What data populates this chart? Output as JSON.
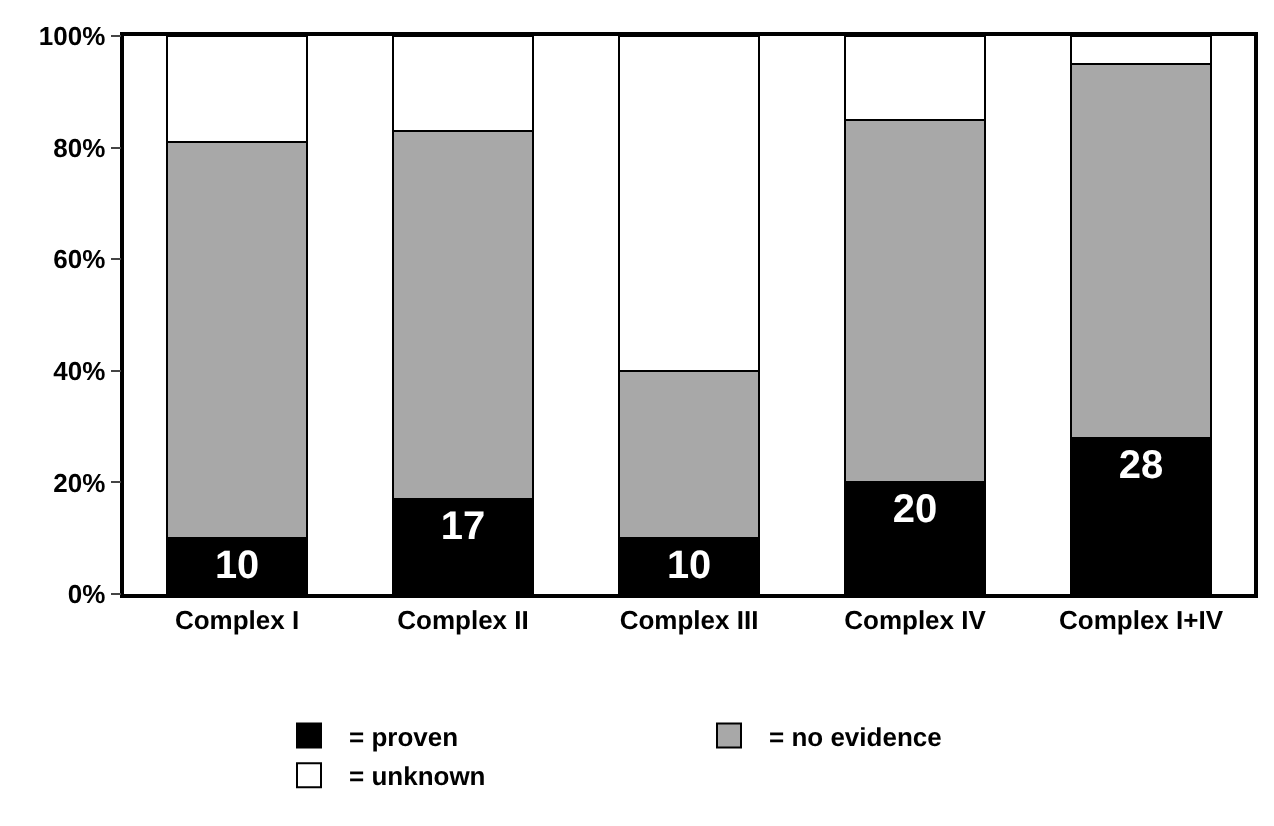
{
  "chart_data": {
    "type": "bar",
    "stacked": true,
    "categories": [
      "Complex I",
      "Complex II",
      "Complex III",
      "Complex IV",
      "Complex I+IV"
    ],
    "series": [
      {
        "name": "= proven",
        "color": "#000000",
        "values": [
          10,
          17,
          10,
          20,
          28
        ],
        "value_labels": [
          "10",
          "17",
          "10",
          "20",
          "28"
        ]
      },
      {
        "name": "= no evidence",
        "color": "#a8a8a8",
        "values": [
          71,
          66,
          30,
          65,
          67
        ]
      },
      {
        "name": "= unknown",
        "color": "#ffffff",
        "values": [
          19,
          17,
          60,
          15,
          5
        ]
      }
    ],
    "ylim": [
      0,
      100
    ],
    "yticks": [
      {
        "value": 0,
        "label": "0%"
      },
      {
        "value": 20,
        "label": "20%"
      },
      {
        "value": 40,
        "label": "40%"
      },
      {
        "value": 60,
        "label": "60%"
      },
      {
        "value": 80,
        "label": "80%"
      },
      {
        "value": 100,
        "label": "100%"
      }
    ],
    "grid": false,
    "legend": "bottom"
  }
}
